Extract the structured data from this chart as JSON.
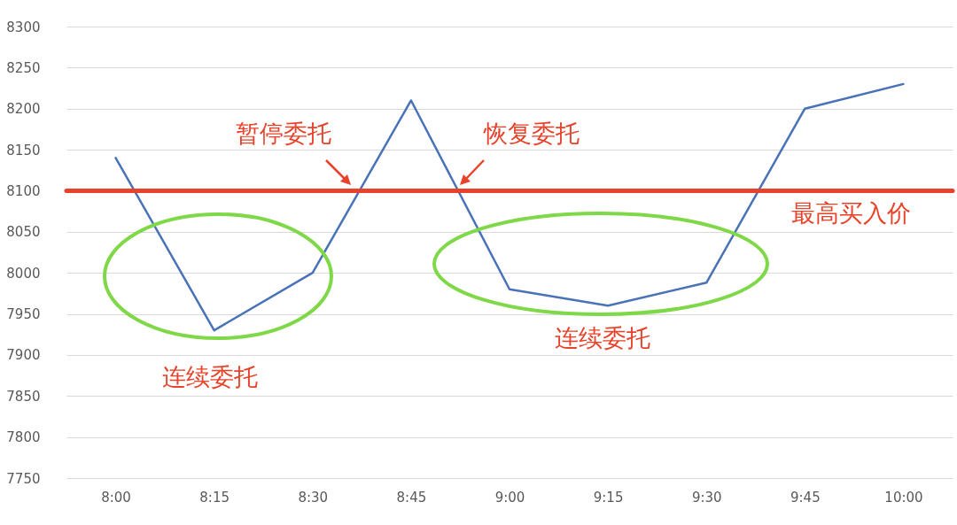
{
  "chart_data": {
    "type": "line",
    "categories": [
      "8:00",
      "8:15",
      "8:30",
      "8:45",
      "9:00",
      "9:15",
      "9:30",
      "9:45",
      "10:00"
    ],
    "series": [
      {
        "color": "#4a72b8",
        "values": [
          8140,
          7930,
          8000,
          8210,
          7980,
          7960,
          7988,
          8200,
          8230
        ]
      }
    ],
    "ylim": [
      7750,
      8300
    ],
    "yticks": [
      7750,
      7800,
      7850,
      7900,
      7950,
      8000,
      8050,
      8100,
      8150,
      8200,
      8250,
      8300
    ],
    "grid": "y",
    "ref_lines": [
      {
        "axis": "y",
        "value": 8100,
        "label": "最高买入价",
        "color": "#e8432a"
      }
    ],
    "annotations": [
      "暂停委托",
      "恢复委托",
      "连续委托",
      "连续委托"
    ]
  }
}
